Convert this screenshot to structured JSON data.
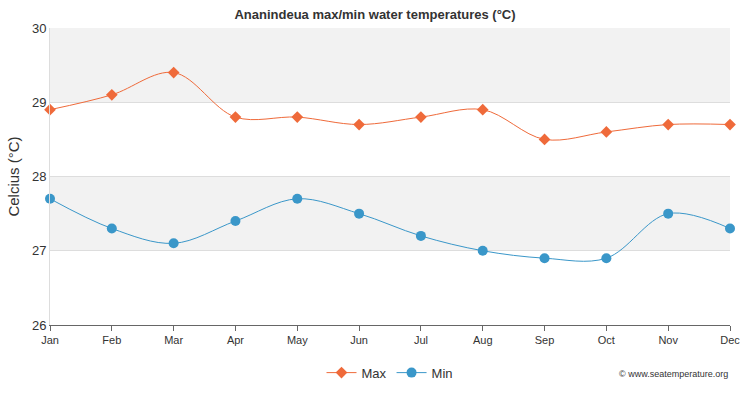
{
  "chart_data": {
    "type": "line",
    "title": "Ananindeua max/min water temperatures (°C)",
    "y_label": "Celcius (°C)",
    "categories": [
      "Jan",
      "Feb",
      "Mar",
      "Apr",
      "May",
      "Jun",
      "Jul",
      "Aug",
      "Sep",
      "Oct",
      "Nov",
      "Dec"
    ],
    "series": [
      {
        "name": "Max",
        "color": "#ef6a3a",
        "marker": "diamond",
        "values": [
          28.9,
          29.1,
          29.4,
          28.8,
          28.8,
          28.7,
          28.8,
          28.9,
          28.5,
          28.6,
          28.7,
          28.7
        ]
      },
      {
        "name": "Min",
        "color": "#3a97c9",
        "marker": "circle",
        "values": [
          27.7,
          27.3,
          27.1,
          27.4,
          27.7,
          27.5,
          27.2,
          27.0,
          26.9,
          26.9,
          27.5,
          27.3
        ]
      }
    ],
    "ylim": [
      26,
      30
    ],
    "yticks": [
      26,
      27,
      28,
      29,
      30
    ],
    "grid": true,
    "legend": "bottom",
    "annotations": [
      "© www.seatemperature.org"
    ]
  }
}
